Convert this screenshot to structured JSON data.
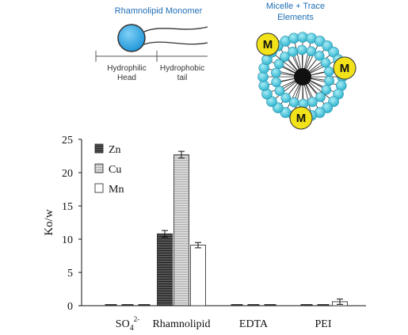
{
  "diagram": {
    "monomer_title": "Rhamnolipid Monomer",
    "micelle_title_line1": "Micelle + Trace",
    "micelle_title_line2": "Elements",
    "head_label_line1": "Hydrophilic",
    "head_label_line2": "Head",
    "tail_label_line1": "Hydrophobic",
    "tail_label_line2": "tail",
    "metal_label": "M",
    "colors": {
      "head": "#2ea6e8",
      "bead": "#42c6dd",
      "metal": "#f1e21a",
      "core": "#111111",
      "title": "#1f6fb5"
    }
  },
  "chart_data": {
    "type": "bar",
    "categories": [
      "SO4 2-",
      "Rhamnolipid",
      "EDTA",
      "PEI"
    ],
    "category_labels": [
      {
        "main": "SO",
        "sub": "4",
        "sup": "2-"
      },
      {
        "main": "Rhamnolipid"
      },
      {
        "main": "EDTA"
      },
      {
        "main": "PEI"
      }
    ],
    "series": [
      {
        "name": "Zn",
        "values": [
          0.2,
          10.8,
          0.2,
          0.2
        ],
        "errors": [
          0.1,
          0.5,
          0.1,
          0.1
        ],
        "style": "dark-hatch"
      },
      {
        "name": "Cu",
        "values": [
          0.05,
          22.7,
          0.05,
          0.05
        ],
        "errors": [
          0,
          0.5,
          0,
          0
        ],
        "style": "light-hatch"
      },
      {
        "name": "Mn",
        "values": [
          0.2,
          9.1,
          0.05,
          0.6
        ],
        "errors": [
          0.1,
          0.4,
          0,
          0.4
        ],
        "style": "white"
      }
    ],
    "ylabel": "Ko/w",
    "ylim": [
      0,
      25
    ],
    "yticks": [
      0,
      5,
      10,
      15,
      20,
      25
    ],
    "grid": false,
    "legend_position": "top-left",
    "error_bars": true
  }
}
